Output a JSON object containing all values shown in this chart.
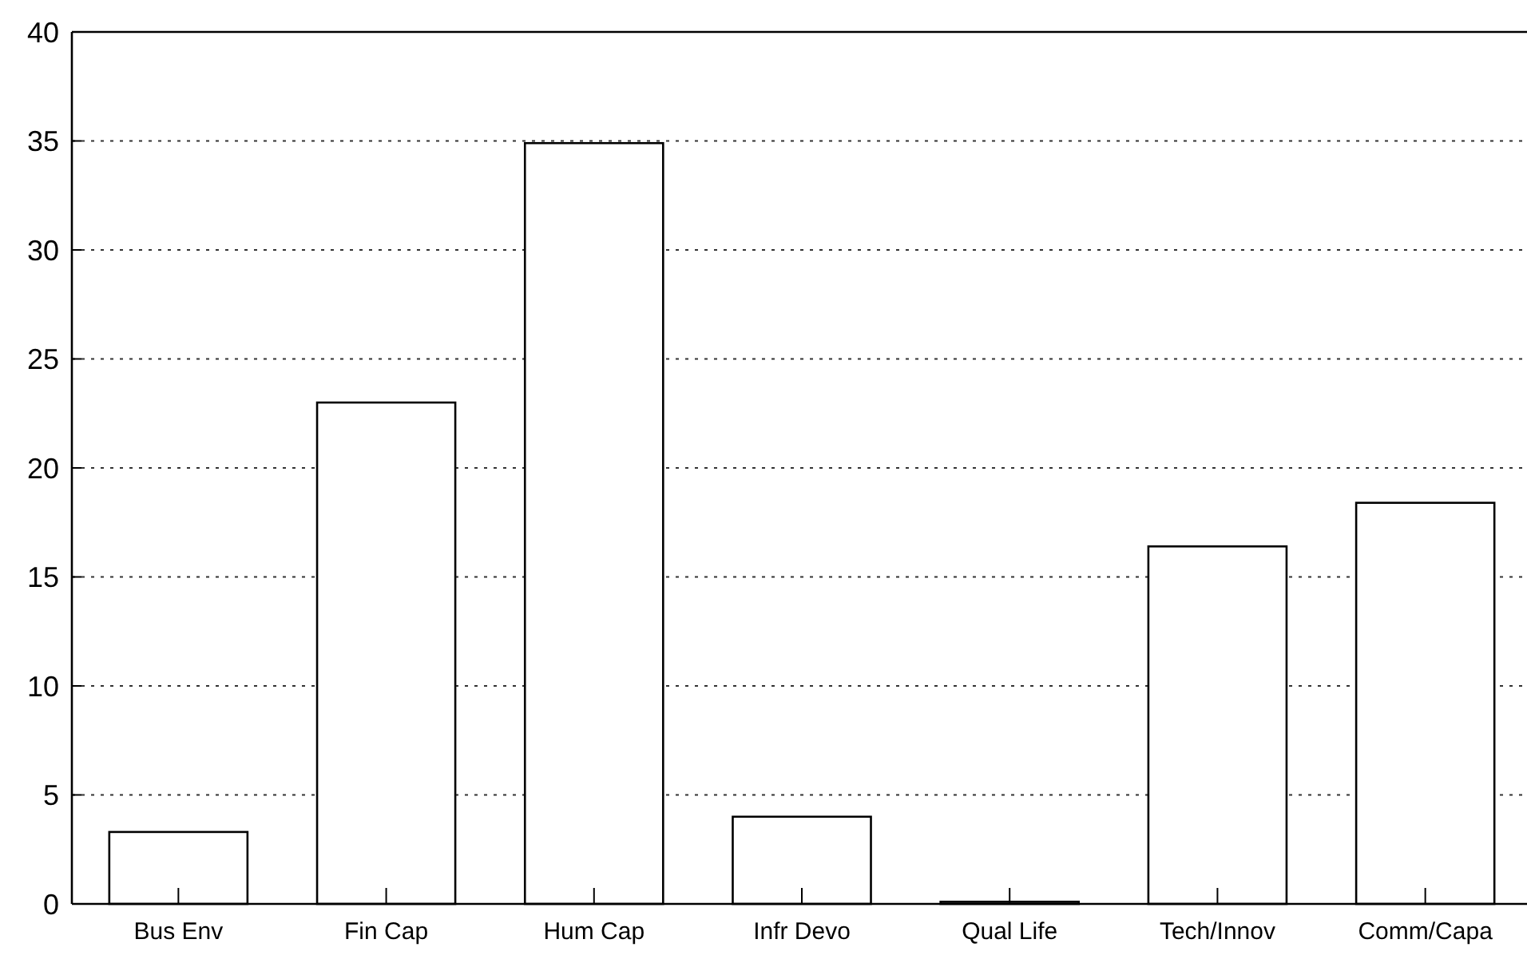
{
  "chart_data": {
    "type": "bar",
    "categories": [
      "Bus Env",
      "Fin Cap",
      "Hum Cap",
      "Infr Devo",
      "Qual Life",
      "Tech/Innov",
      "Comm/Capa"
    ],
    "values": [
      3.3,
      23,
      34.9,
      4,
      0.1,
      16.4,
      18.4
    ],
    "color": "#ffffff",
    "ylim": [
      0,
      40
    ],
    "yticks": [
      0,
      5,
      10,
      15,
      20,
      25,
      30,
      35,
      40
    ],
    "grid": "y"
  }
}
